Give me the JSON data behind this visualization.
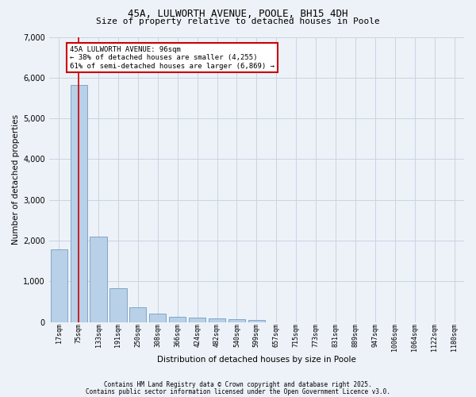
{
  "title_line1": "45A, LULWORTH AVENUE, POOLE, BH15 4DH",
  "title_line2": "Size of property relative to detached houses in Poole",
  "xlabel": "Distribution of detached houses by size in Poole",
  "ylabel": "Number of detached properties",
  "categories": [
    "17sqm",
    "75sqm",
    "133sqm",
    "191sqm",
    "250sqm",
    "308sqm",
    "366sqm",
    "424sqm",
    "482sqm",
    "540sqm",
    "599sqm",
    "657sqm",
    "715sqm",
    "773sqm",
    "831sqm",
    "889sqm",
    "947sqm",
    "1006sqm",
    "1064sqm",
    "1122sqm",
    "1180sqm"
  ],
  "values": [
    1780,
    5820,
    2090,
    820,
    360,
    210,
    130,
    100,
    90,
    70,
    55,
    0,
    0,
    0,
    0,
    0,
    0,
    0,
    0,
    0,
    0
  ],
  "bar_color": "#b8d0e8",
  "bar_edge_color": "#6090b8",
  "grid_color": "#c8d4e4",
  "background_color": "#edf2f8",
  "vline_color": "#cc0000",
  "vline_x": 1,
  "ann_line1": "45A LULWORTH AVENUE: 96sqm",
  "ann_line2": "← 38% of detached houses are smaller (4,255)",
  "ann_line3": "61% of semi-detached houses are larger (6,869) →",
  "ann_box_edge_color": "#cc0000",
  "ylim_max": 7000,
  "yticks": [
    0,
    1000,
    2000,
    3000,
    4000,
    5000,
    6000,
    7000
  ],
  "footer_line1": "Contains HM Land Registry data © Crown copyright and database right 2025.",
  "footer_line2": "Contains public sector information licensed under the Open Government Licence v3.0."
}
